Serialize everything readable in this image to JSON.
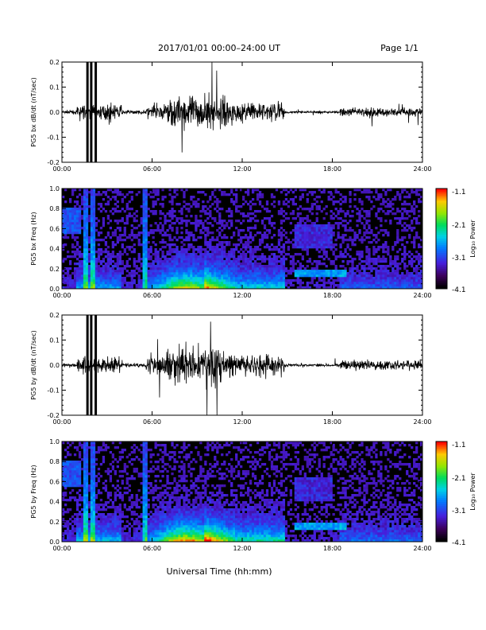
{
  "header": {
    "title": "2017/01/01   00:00–24:00 UT",
    "page": "Page 1/1"
  },
  "footer": {
    "xlabel": "Universal Time (hh:mm)"
  },
  "colorbar": {
    "label": "Log₁₀ Power",
    "ticks": [
      "-1.1",
      "-2.1",
      "-3.1",
      "-4.1"
    ]
  },
  "chart_data": [
    {
      "type": "line",
      "ylabel": "PG5 bx dB/dt (nT/sec)",
      "ylim": [
        -0.2,
        0.2
      ],
      "yticks": [
        "0.2",
        "0.1",
        "0.0",
        "-0.1",
        "-0.2"
      ],
      "xticks": [
        "00:00",
        "06:00",
        "12:00",
        "18:00",
        "24:00"
      ],
      "xlim_hours": [
        0,
        24
      ],
      "series_color": "#000000"
    },
    {
      "type": "heatmap",
      "ylabel": "PG5 bx Freq (Hz)",
      "ylim": [
        0.0,
        1.0
      ],
      "yticks": [
        "1.0",
        "0.8",
        "0.6",
        "0.4",
        "0.2",
        "0.0"
      ],
      "xticks": [
        "00:00",
        "06:00",
        "12:00",
        "18:00",
        "24:00"
      ],
      "color_range": [
        -4.1,
        -1.1
      ]
    },
    {
      "type": "line",
      "ylabel": "PG5 by dB/dt (nT/sec)",
      "ylim": [
        -0.2,
        0.2
      ],
      "yticks": [
        "0.2",
        "0.1",
        "0.0",
        "-0.1",
        "-0.2"
      ],
      "xticks": [
        "00:00",
        "06:00",
        "12:00",
        "18:00",
        "24:00"
      ],
      "xlim_hours": [
        0,
        24
      ],
      "series_color": "#000000"
    },
    {
      "type": "heatmap",
      "ylabel": "PG5 by Freq (Hz)",
      "ylim": [
        0.0,
        1.0
      ],
      "yticks": [
        "1.0",
        "0.8",
        "0.6",
        "0.4",
        "0.2",
        "0.0"
      ],
      "xticks": [
        "00:00",
        "06:00",
        "12:00",
        "18:00",
        "24:00"
      ],
      "color_range": [
        -4.1,
        -1.1
      ]
    }
  ]
}
